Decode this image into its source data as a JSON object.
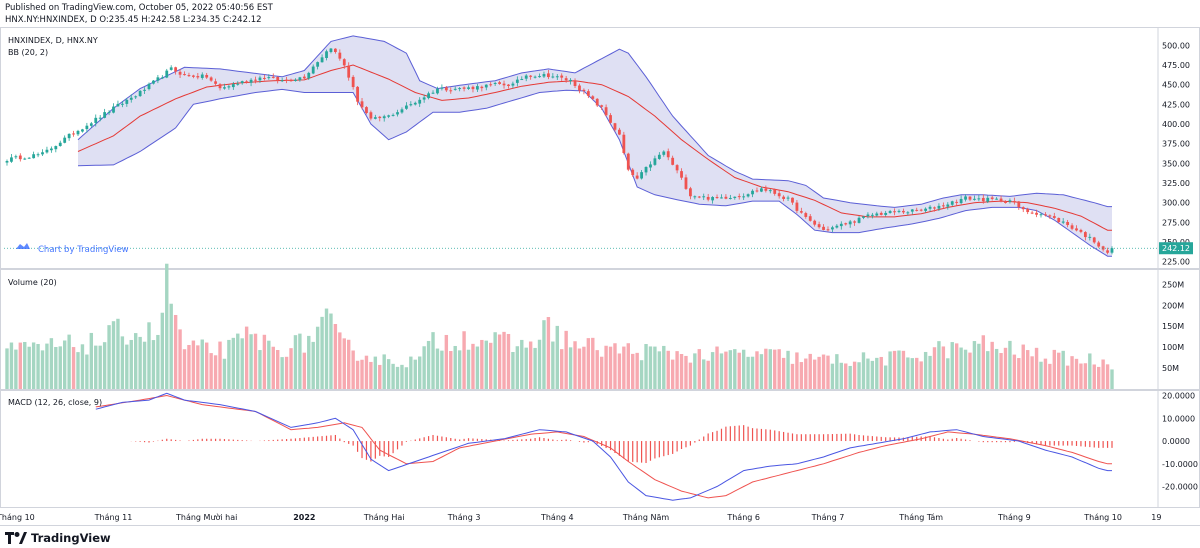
{
  "header": {
    "published": "Published on TradingView.com, October 05, 2022 05:40:56 EST",
    "ohlc": "HNX.NY:HNXINDEX, D O:235.45 H:242.58 L:234.35 C:242.12"
  },
  "footer": {
    "logo_text": "TradingView"
  },
  "chart_data": {
    "type": "candlestick",
    "colors": {
      "up": "#26a69a",
      "down": "#ef5350",
      "bb_band": "#5b5fd6",
      "bb_fill": "#c5c6ea",
      "bb_basis": "#e53935",
      "macd": "#4a56e2",
      "signal": "#ef5350",
      "vol_up": "#a5d6c2",
      "vol_down": "#f7a9b0",
      "last_price": "#26a69a"
    },
    "x_ticks": [
      "Tháng 10",
      "Tháng 11",
      "Tháng Mười hai",
      "2022",
      "Tháng Hai",
      "Tháng 3",
      "Tháng 4",
      "Tháng Năm",
      "Tháng 6",
      "Tháng 7",
      "Tháng Tám",
      "Tháng 9",
      "Tháng 10",
      "19"
    ],
    "x_tick_index": [
      2,
      24,
      45,
      67,
      85,
      103,
      124,
      144,
      166,
      185,
      206,
      227,
      247,
      259
    ],
    "bars_count": 250,
    "price": {
      "legend": [
        "HNXINDEX, D, HNX.NY",
        "BB (20, 2)"
      ],
      "ylim": [
        217,
        522
      ],
      "y_ticks": [
        "500.00",
        "475.00",
        "450.00",
        "425.00",
        "400.00",
        "375.00",
        "350.00",
        "325.00",
        "300.00",
        "275.00",
        "250.00",
        "225.00"
      ],
      "last_price_label": "242.12",
      "last_price": 242.12,
      "watermark": "Chart by TradingView",
      "close_keypoints": [
        [
          0,
          355
        ],
        [
          8,
          362
        ],
        [
          14,
          385
        ],
        [
          24,
          420
        ],
        [
          30,
          440
        ],
        [
          37,
          470
        ],
        [
          40,
          462
        ],
        [
          45,
          460
        ],
        [
          48,
          445
        ],
        [
          52,
          452
        ],
        [
          58,
          460
        ],
        [
          62,
          455
        ],
        [
          67,
          460
        ],
        [
          70,
          480
        ],
        [
          73,
          498
        ],
        [
          76,
          475
        ],
        [
          79,
          430
        ],
        [
          82,
          405
        ],
        [
          86,
          410
        ],
        [
          92,
          428
        ],
        [
          97,
          445
        ],
        [
          103,
          445
        ],
        [
          110,
          450
        ],
        [
          114,
          450
        ],
        [
          117,
          462
        ],
        [
          122,
          462
        ],
        [
          127,
          455
        ],
        [
          130,
          440
        ],
        [
          134,
          420
        ],
        [
          138,
          385
        ],
        [
          140,
          340
        ],
        [
          142,
          330
        ],
        [
          145,
          350
        ],
        [
          148,
          365
        ],
        [
          151,
          340
        ],
        [
          154,
          310
        ],
        [
          159,
          305
        ],
        [
          166,
          310
        ],
        [
          170,
          318
        ],
        [
          173,
          312
        ],
        [
          176,
          304
        ],
        [
          180,
          280
        ],
        [
          184,
          265
        ],
        [
          190,
          275
        ],
        [
          195,
          285
        ],
        [
          200,
          288
        ],
        [
          206,
          290
        ],
        [
          211,
          297
        ],
        [
          216,
          306
        ],
        [
          220,
          304
        ],
        [
          226,
          303
        ],
        [
          229,
          290
        ],
        [
          233,
          286
        ],
        [
          238,
          275
        ],
        [
          242,
          262
        ],
        [
          245,
          251
        ],
        [
          248,
          237
        ],
        [
          249,
          242
        ]
      ],
      "bb": {
        "start_index": 16,
        "upper_keypoints": [
          [
            16,
            380
          ],
          [
            24,
            420
          ],
          [
            30,
            445
          ],
          [
            40,
            472
          ],
          [
            48,
            470
          ],
          [
            55,
            465
          ],
          [
            62,
            460
          ],
          [
            67,
            468
          ],
          [
            73,
            505
          ],
          [
            78,
            512
          ],
          [
            85,
            505
          ],
          [
            90,
            490
          ],
          [
            93,
            455
          ],
          [
            97,
            445
          ],
          [
            103,
            450
          ],
          [
            110,
            455
          ],
          [
            116,
            465
          ],
          [
            122,
            470
          ],
          [
            128,
            465
          ],
          [
            133,
            480
          ],
          [
            138,
            495
          ],
          [
            140,
            490
          ],
          [
            144,
            460
          ],
          [
            150,
            410
          ],
          [
            158,
            360
          ],
          [
            164,
            340
          ],
          [
            168,
            330
          ],
          [
            176,
            328
          ],
          [
            180,
            322
          ],
          [
            184,
            306
          ],
          [
            190,
            300
          ],
          [
            196,
            296
          ],
          [
            200,
            294
          ],
          [
            206,
            298
          ],
          [
            211,
            306
          ],
          [
            215,
            310
          ],
          [
            220,
            310
          ],
          [
            226,
            308
          ],
          [
            232,
            312
          ],
          [
            238,
            310
          ],
          [
            245,
            300
          ],
          [
            248,
            295
          ]
        ],
        "basis_keypoints": [
          [
            16,
            365
          ],
          [
            24,
            385
          ],
          [
            30,
            410
          ],
          [
            38,
            432
          ],
          [
            45,
            447
          ],
          [
            52,
            452
          ],
          [
            60,
            455
          ],
          [
            67,
            456
          ],
          [
            73,
            468
          ],
          [
            78,
            475
          ],
          [
            86,
            457
          ],
          [
            92,
            440
          ],
          [
            98,
            430
          ],
          [
            104,
            433
          ],
          [
            110,
            440
          ],
          [
            116,
            448
          ],
          [
            122,
            453
          ],
          [
            128,
            455
          ],
          [
            134,
            450
          ],
          [
            140,
            435
          ],
          [
            146,
            410
          ],
          [
            152,
            380
          ],
          [
            158,
            355
          ],
          [
            164,
            332
          ],
          [
            170,
            320
          ],
          [
            176,
            314
          ],
          [
            182,
            303
          ],
          [
            188,
            287
          ],
          [
            194,
            282
          ],
          [
            200,
            282
          ],
          [
            206,
            286
          ],
          [
            212,
            294
          ],
          [
            218,
            300
          ],
          [
            224,
            302
          ],
          [
            230,
            300
          ],
          [
            236,
            293
          ],
          [
            242,
            283
          ],
          [
            248,
            265
          ]
        ],
        "lower_keypoints": [
          [
            16,
            347
          ],
          [
            24,
            348
          ],
          [
            30,
            365
          ],
          [
            38,
            395
          ],
          [
            42,
            425
          ],
          [
            48,
            432
          ],
          [
            56,
            440
          ],
          [
            62,
            444
          ],
          [
            67,
            440
          ],
          [
            73,
            440
          ],
          [
            78,
            440
          ],
          [
            82,
            400
          ],
          [
            86,
            380
          ],
          [
            90,
            390
          ],
          [
            96,
            415
          ],
          [
            102,
            415
          ],
          [
            108,
            420
          ],
          [
            114,
            430
          ],
          [
            120,
            440
          ],
          [
            126,
            443
          ],
          [
            130,
            442
          ],
          [
            134,
            420
          ],
          [
            138,
            380
          ],
          [
            142,
            320
          ],
          [
            146,
            310
          ],
          [
            150,
            305
          ],
          [
            156,
            298
          ],
          [
            162,
            296
          ],
          [
            168,
            302
          ],
          [
            174,
            302
          ],
          [
            178,
            285
          ],
          [
            182,
            265
          ],
          [
            186,
            262
          ],
          [
            192,
            262
          ],
          [
            198,
            268
          ],
          [
            204,
            273
          ],
          [
            210,
            280
          ],
          [
            216,
            290
          ],
          [
            222,
            294
          ],
          [
            228,
            294
          ],
          [
            232,
            290
          ],
          [
            236,
            278
          ],
          [
            240,
            262
          ],
          [
            244,
            246
          ],
          [
            248,
            232
          ]
        ]
      }
    },
    "volume": {
      "legend": "Volume (20)",
      "ylim": [
        0,
        270
      ],
      "y_ticks": [
        "250M",
        "200M",
        "150M",
        "100M",
        "50M"
      ],
      "y_tick_values": [
        250,
        200,
        150,
        100,
        50
      ],
      "keypoints": [
        [
          0,
          90
        ],
        [
          20,
          110
        ],
        [
          26,
          140
        ],
        [
          34,
          130
        ],
        [
          36,
          250
        ],
        [
          40,
          95
        ],
        [
          50,
          95
        ],
        [
          55,
          130
        ],
        [
          60,
          95
        ],
        [
          67,
          110
        ],
        [
          72,
          160
        ],
        [
          76,
          100
        ],
        [
          84,
          70
        ],
        [
          92,
          65
        ],
        [
          96,
          110
        ],
        [
          104,
          125
        ],
        [
          110,
          115
        ],
        [
          116,
          100
        ],
        [
          122,
          145
        ],
        [
          128,
          105
        ],
        [
          136,
          95
        ],
        [
          144,
          90
        ],
        [
          150,
          85
        ],
        [
          158,
          80
        ],
        [
          166,
          85
        ],
        [
          174,
          80
        ],
        [
          182,
          70
        ],
        [
          190,
          70
        ],
        [
          198,
          72
        ],
        [
          204,
          80
        ],
        [
          210,
          95
        ],
        [
          216,
          95
        ],
        [
          220,
          105
        ],
        [
          228,
          90
        ],
        [
          236,
          75
        ],
        [
          244,
          70
        ],
        [
          249,
          60
        ]
      ]
    },
    "macd": {
      "legend": "MACD (12, 26, close, 9)",
      "ylim": [
        -29,
        22
      ],
      "y_ticks": [
        "20.0000",
        "10.0000",
        "0.0000",
        "-10.0000",
        "-20.0000"
      ],
      "y_tick_values": [
        20,
        10,
        0,
        -10,
        -20
      ],
      "start_index": 20,
      "macd_keypoints": [
        [
          20,
          14
        ],
        [
          26,
          17
        ],
        [
          32,
          18
        ],
        [
          36,
          21
        ],
        [
          40,
          18
        ],
        [
          48,
          16
        ],
        [
          56,
          13
        ],
        [
          64,
          6
        ],
        [
          70,
          8
        ],
        [
          74,
          10
        ],
        [
          78,
          5
        ],
        [
          82,
          -8
        ],
        [
          86,
          -13
        ],
        [
          92,
          -9
        ],
        [
          98,
          -5
        ],
        [
          104,
          -1
        ],
        [
          112,
          1
        ],
        [
          120,
          5
        ],
        [
          126,
          4
        ],
        [
          132,
          0
        ],
        [
          136,
          -7
        ],
        [
          140,
          -18
        ],
        [
          144,
          -24
        ],
        [
          150,
          -26
        ],
        [
          154,
          -25
        ],
        [
          160,
          -20
        ],
        [
          166,
          -13
        ],
        [
          172,
          -11
        ],
        [
          178,
          -10
        ],
        [
          184,
          -7
        ],
        [
          190,
          -3
        ],
        [
          196,
          -1
        ],
        [
          202,
          1
        ],
        [
          208,
          4
        ],
        [
          214,
          5
        ],
        [
          220,
          2
        ],
        [
          228,
          0
        ],
        [
          234,
          -4
        ],
        [
          240,
          -7
        ],
        [
          246,
          -12
        ],
        [
          248,
          -13
        ]
      ],
      "signal_keypoints": [
        [
          20,
          15
        ],
        [
          30,
          18
        ],
        [
          36,
          20
        ],
        [
          44,
          16
        ],
        [
          56,
          13
        ],
        [
          64,
          5
        ],
        [
          70,
          6
        ],
        [
          76,
          8
        ],
        [
          80,
          6
        ],
        [
          84,
          -4
        ],
        [
          90,
          -10
        ],
        [
          96,
          -9
        ],
        [
          102,
          -3
        ],
        [
          110,
          0
        ],
        [
          118,
          3
        ],
        [
          124,
          4
        ],
        [
          130,
          2
        ],
        [
          136,
          -3
        ],
        [
          140,
          -9
        ],
        [
          146,
          -17
        ],
        [
          152,
          -22
        ],
        [
          158,
          -25
        ],
        [
          162,
          -24
        ],
        [
          168,
          -18
        ],
        [
          176,
          -14
        ],
        [
          184,
          -10
        ],
        [
          192,
          -5
        ],
        [
          198,
          -2
        ],
        [
          206,
          1
        ],
        [
          212,
          4
        ],
        [
          218,
          3
        ],
        [
          226,
          1
        ],
        [
          234,
          -2
        ],
        [
          240,
          -5
        ],
        [
          246,
          -9
        ],
        [
          248,
          -10
        ]
      ]
    }
  }
}
